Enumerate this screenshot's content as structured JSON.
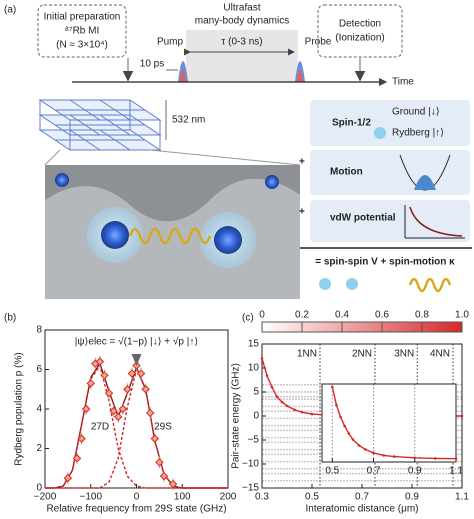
{
  "diagram": {
    "label": "(a)",
    "prep": [
      "Initial preparation",
      "⁸⁷Rb MI",
      "(N ≈ 3×10⁴)"
    ],
    "dynamics": [
      "Ultrafast",
      "many-body dynamics"
    ],
    "pump": "Pump",
    "tau": "τ (0-3 ns)",
    "probe": "Probe",
    "detection": [
      "Detection",
      "(Ionization)"
    ],
    "pulse": "10 ps",
    "time": "Time",
    "lattice": "532 nm",
    "spin": "Spin-1/2",
    "ground": "Ground |↓⟩",
    "rydberg": "Rydberg |↑⟩",
    "plus": "+",
    "motion": "Motion",
    "vdw": "vdW potential",
    "result": "= spin-spin V + spin-motion κ"
  },
  "chart_data": [
    {
      "type": "scatter",
      "label": "(b)",
      "xlabel": "Relative frequency from 29S state (GHz)",
      "ylabel": "Rydberg population p (%)",
      "annotations": [
        "|ψ⟩elec = √(1−p) |↓⟩ + √p |↑⟩",
        "27D",
        "29S"
      ],
      "xlim": [
        -200,
        200
      ],
      "xticks": [
        {
          "value": -200,
          "label": "−200"
        },
        {
          "value": -100,
          "label": "−100"
        },
        0,
        100,
        200
      ],
      "ylim": [
        0,
        8
      ],
      "yticks": [
        0,
        2,
        4,
        6,
        8
      ],
      "points": {
        "color": "#d62728",
        "x": [
          -150,
          -130,
          -120,
          -110,
          -100,
          -90,
          -80,
          -70,
          -60,
          -50,
          -40,
          -30,
          -20,
          -10,
          0,
          10,
          20,
          30,
          40,
          50,
          60,
          80
        ],
        "values": [
          0.5,
          1.5,
          2.5,
          4.0,
          5.3,
          6.3,
          6.4,
          5.7,
          4.8,
          3.9,
          3.6,
          4.0,
          5.0,
          5.8,
          6.2,
          5.8,
          5.0,
          3.8,
          2.5,
          1.3,
          0.6,
          0.2
        ]
      },
      "x": [
        -200,
        -180,
        -160,
        -140,
        -120,
        -100,
        -80,
        -60,
        -40,
        -20,
        0,
        20,
        40,
        60,
        80,
        100,
        120,
        140,
        160,
        180,
        200
      ],
      "series": [
        {
          "color": "#8b1a1a",
          "dashed": false,
          "values": [
            0,
            0,
            0.1,
            0.9,
            3.2,
            5.6,
            6.3,
            4.9,
            3.6,
            4.8,
            6.1,
            5.0,
            2.4,
            0.7,
            0.1,
            0,
            0,
            0,
            0,
            0,
            0
          ]
        },
        {
          "color": "#d62728",
          "dashed": true,
          "values": [
            0,
            0,
            0.1,
            0.9,
            3.2,
            5.5,
            6.2,
            4.4,
            2.0,
            0.6,
            0.1,
            0,
            0,
            0,
            0,
            0,
            0,
            0,
            0,
            0,
            0
          ]
        },
        {
          "color": "#d62728",
          "dashed": true,
          "values": [
            0,
            0,
            0,
            0,
            0,
            0,
            0,
            0.3,
            1.5,
            4.1,
            6.0,
            5.0,
            2.4,
            0.7,
            0.1,
            0,
            0,
            0,
            0,
            0,
            0
          ]
        }
      ]
    },
    {
      "type": "line",
      "label": "(c)",
      "xlabel": "Interatomic distance (μm)",
      "ylabel": "Pair-state energy (GHz)",
      "xlim": [
        0.3,
        1.1
      ],
      "xticks": [
        0.3,
        0.5,
        0.7,
        0.9,
        1.1
      ],
      "ylim": [
        -15,
        15
      ],
      "yticks": [
        {
          "value": -15,
          "label": "−15"
        },
        {
          "value": -10,
          "label": "−10"
        },
        {
          "value": -5,
          "label": "−5"
        },
        0,
        5,
        10,
        15
      ],
      "colorbar": {
        "lim": [
          0,
          1
        ],
        "ticks": [
          0,
          0.2,
          0.4,
          0.6,
          0.8,
          {
            "value": 1,
            "label": "1.0"
          }
        ],
        "color": "#d62728"
      },
      "neighbors": {
        "labels": [
          "1NN",
          "2NN",
          "3NN",
          "4NN"
        ],
        "x": [
          0.532,
          0.752,
          0.921,
          1.064
        ]
      },
      "levels_color": "#c8c8c8",
      "levels": [
        6.5,
        5,
        4,
        3.5,
        2,
        1,
        -0.5,
        -2,
        -3,
        -4.5,
        -5.5,
        -7,
        -8,
        -9.5,
        -11,
        -12,
        -13.5
      ],
      "x": [
        0.3,
        0.32,
        0.34,
        0.36,
        0.38,
        0.4,
        0.43,
        0.46,
        0.5,
        0.55,
        0.6,
        0.7,
        0.8,
        0.9,
        1.0,
        1.1
      ],
      "series": [
        {
          "color": "#d62728",
          "values": [
            12,
            8.4,
            6.0,
            4.0,
            2.9,
            2.1,
            1.3,
            0.8,
            0.4,
            0.25,
            0.2,
            0.1,
            0,
            0,
            0,
            0
          ]
        }
      ]
    },
    {
      "type": "line",
      "xlim": [
        0.45,
        1.1
      ],
      "xticks": [
        0.5,
        0.7,
        0.9,
        1.1
      ],
      "ylim": [
        -0.1,
        2.5
      ],
      "x": [
        0.5,
        0.52,
        0.54,
        0.56,
        0.58,
        0.6,
        0.63,
        0.66,
        0.7,
        0.75,
        0.8,
        0.9,
        1.0,
        1.1
      ],
      "series": [
        {
          "color": "#d62728",
          "values": [
            2.4,
            1.8,
            1.4,
            1.1,
            0.85,
            0.65,
            0.45,
            0.32,
            0.2,
            0.12,
            0.08,
            0.04,
            0.02,
            0.01
          ]
        }
      ]
    }
  ]
}
